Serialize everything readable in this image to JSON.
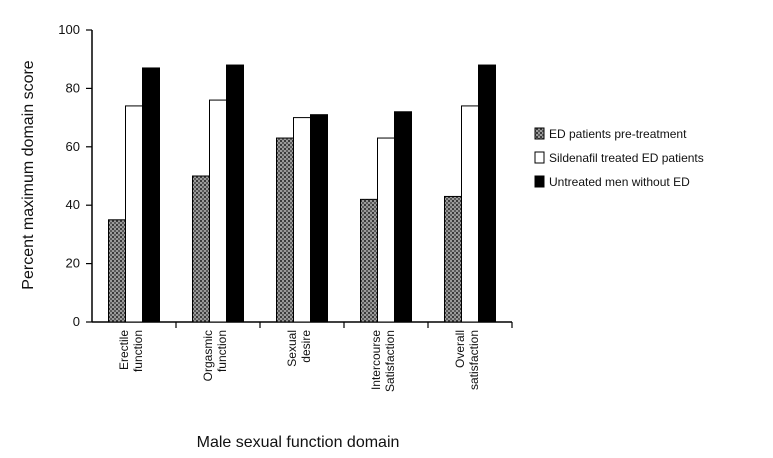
{
  "chart_data": {
    "type": "bar",
    "title": "",
    "xlabel": "Male sexual function domain",
    "ylabel": "Percent maximum domain score",
    "ylim": [
      0,
      100
    ],
    "yticks": [
      "0",
      "20",
      "40",
      "60",
      "80",
      "100"
    ],
    "categories": [
      [
        "Erectile",
        "function"
      ],
      [
        "Orgasmic",
        "function"
      ],
      [
        "Sexual",
        "desire"
      ],
      [
        "Intercourse",
        "Satisfaction"
      ],
      [
        "Overall",
        "satisfaction"
      ]
    ],
    "series": [
      {
        "name": "ED patients pre-treatment",
        "fill": "pattern-gray",
        "values": [
          35,
          50,
          63,
          42,
          43
        ]
      },
      {
        "name": "Sildenafil treated ED patients",
        "fill": "#ffffff",
        "values": [
          74,
          76,
          70,
          63,
          74
        ]
      },
      {
        "name": "Untreated men without ED",
        "fill": "#000000",
        "values": [
          87,
          88,
          71,
          72,
          88
        ]
      }
    ],
    "legend_position": "right",
    "grid": false
  }
}
